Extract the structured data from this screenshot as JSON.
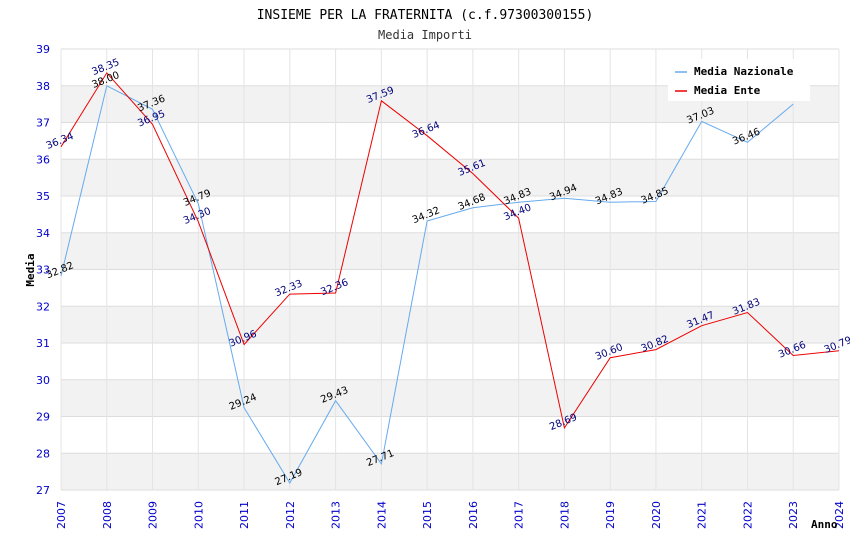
{
  "chart_data": {
    "type": "line",
    "title": "INSIEME PER LA FRATERNITA (c.f.97300300155)",
    "subtitle": "Media Importi",
    "xlabel": "Anno",
    "ylabel": "Media",
    "ylim": [
      27,
      39
    ],
    "yticks": [
      "27",
      "28",
      "29",
      "30",
      "31",
      "32",
      "33",
      "34",
      "35",
      "36",
      "37",
      "38",
      "39"
    ],
    "categories": [
      "2007",
      "2008",
      "2009",
      "2010",
      "2011",
      "2012",
      "2013",
      "2014",
      "2015",
      "2016",
      "2017",
      "2018",
      "2019",
      "2020",
      "2021",
      "2022",
      "2023",
      "2024"
    ],
    "legend_position": "top-right",
    "series": [
      {
        "name": "Media Nazionale",
        "color": "#66aaee",
        "values": [
          32.82,
          38.0,
          37.36,
          34.79,
          29.24,
          27.19,
          29.43,
          27.71,
          34.32,
          34.68,
          34.83,
          34.94,
          34.83,
          34.85,
          37.03,
          36.46,
          37.5,
          null
        ],
        "labels": [
          "32.82",
          "38.00",
          "37.36",
          "34.79",
          "29.24",
          "27.19",
          "29.43",
          "27.71",
          "34.32",
          "34.68",
          "34.83",
          "34.94",
          "34.83",
          "34.85",
          "37.03",
          "36.46",
          "",
          ""
        ]
      },
      {
        "name": "Media Ente",
        "color": "#ee0000",
        "values": [
          36.34,
          38.35,
          36.95,
          34.3,
          30.96,
          32.33,
          32.36,
          37.59,
          36.64,
          35.61,
          34.4,
          28.69,
          30.6,
          30.82,
          31.47,
          31.83,
          30.66,
          30.79
        ],
        "labels": [
          "36.34",
          "38.35",
          "36.95",
          "34.30",
          "30.96",
          "32.33",
          "32.36",
          "37.59",
          "36.64",
          "35.61",
          "34.40",
          "28.69",
          "30.60",
          "30.82",
          "31.47",
          "31.83",
          "30.66",
          "30.79"
        ]
      }
    ]
  }
}
